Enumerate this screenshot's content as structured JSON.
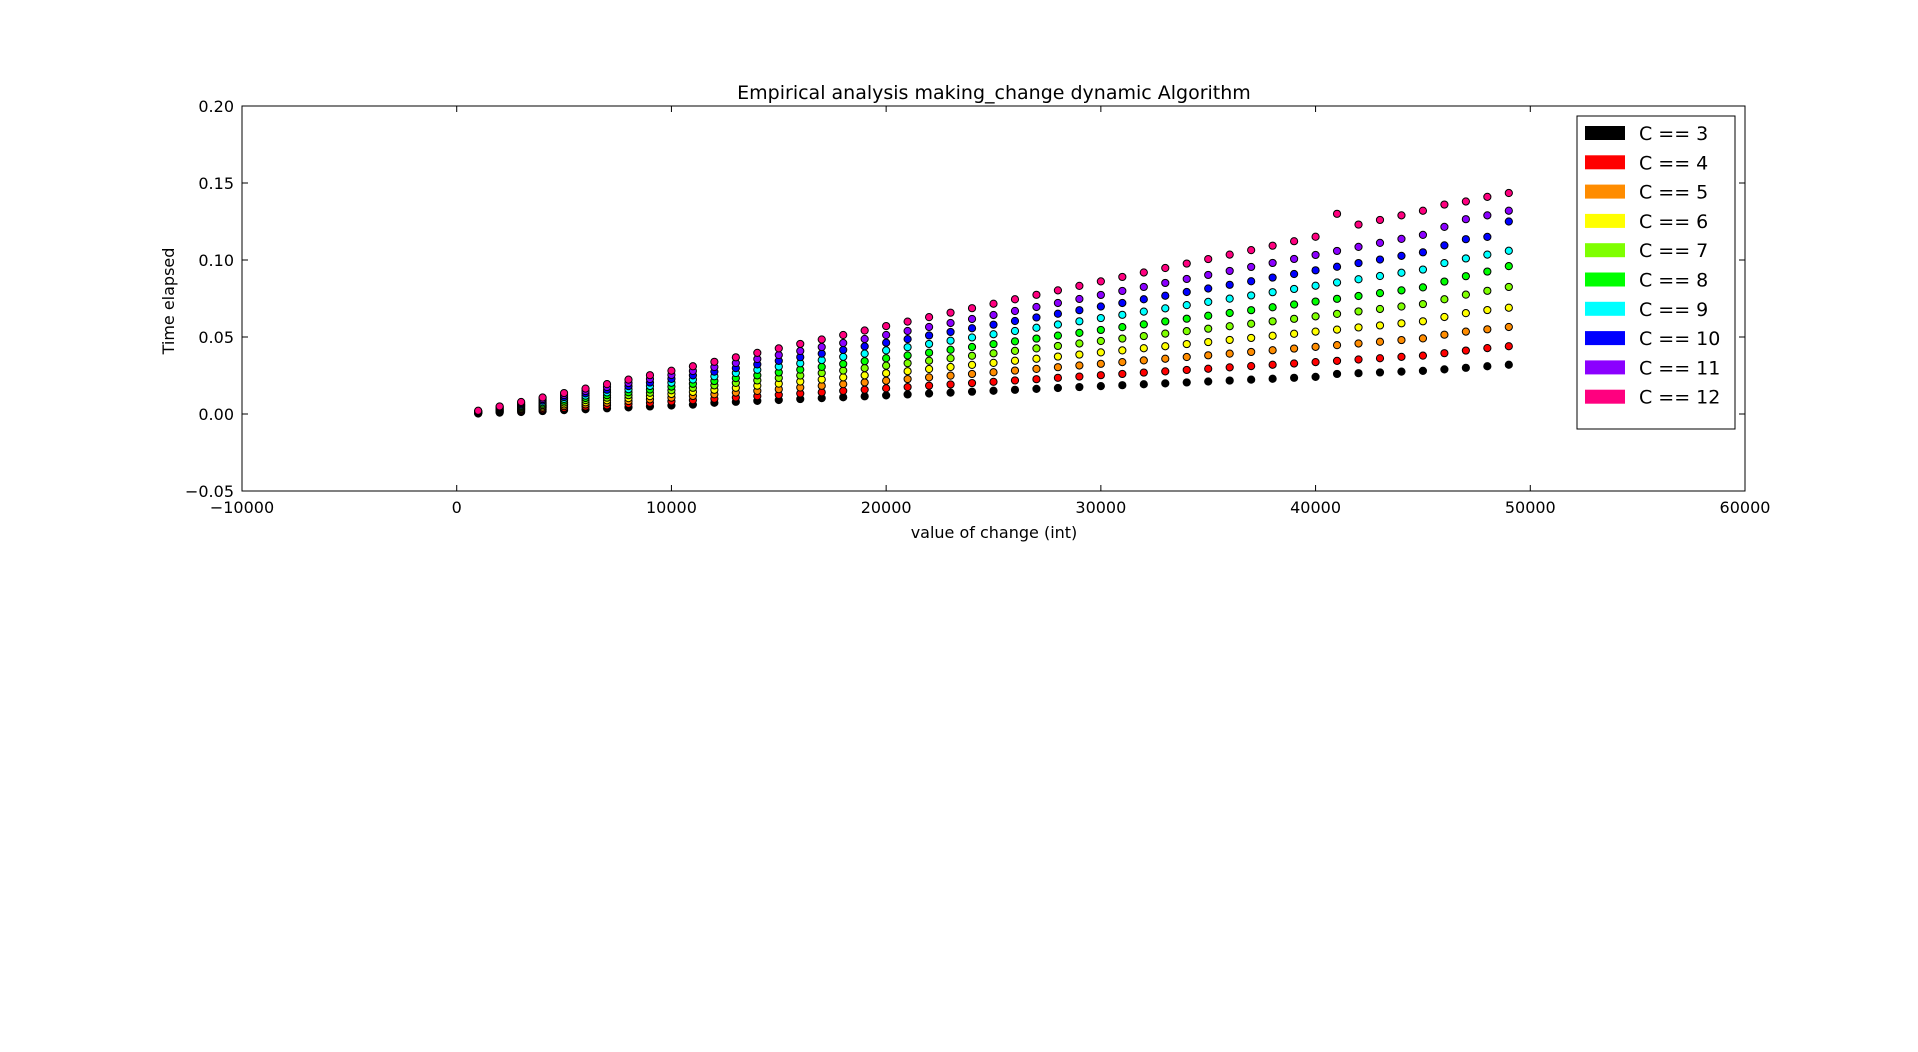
{
  "chart_data": {
    "type": "scatter",
    "title": "Empirical analysis making_change dynamic Algorithm",
    "xlabel": "value of change (int)",
    "ylabel": "Time elapsed",
    "xlim": [
      -10000,
      60000
    ],
    "ylim": [
      -0.05,
      0.2
    ],
    "x_ticks": [
      -10000,
      0,
      10000,
      20000,
      30000,
      40000,
      50000,
      60000
    ],
    "x_tick_labels": [
      "−10000",
      "0",
      "10000",
      "20000",
      "30000",
      "40000",
      "50000",
      "60000"
    ],
    "y_ticks": [
      -0.05,
      0.0,
      0.05,
      0.1,
      0.15,
      0.2
    ],
    "y_tick_labels": [
      "−0.05",
      "0.00",
      "0.05",
      "0.10",
      "0.15",
      "0.20"
    ],
    "legend_position": "top-right",
    "x": [
      1000,
      2000,
      3000,
      4000,
      5000,
      6000,
      7000,
      8000,
      9000,
      10000,
      11000,
      12000,
      13000,
      14000,
      15000,
      16000,
      17000,
      18000,
      19000,
      20000,
      21000,
      22000,
      23000,
      24000,
      25000,
      26000,
      27000,
      28000,
      29000,
      30000,
      31000,
      32000,
      33000,
      34000,
      35000,
      36000,
      37000,
      38000,
      39000,
      40000,
      41000,
      42000,
      43000,
      44000,
      45000,
      46000,
      47000,
      48000,
      49000
    ],
    "series": [
      {
        "name": "C == 3",
        "color": "#000000",
        "values": [
          0.0003,
          0.0009,
          0.0013,
          0.0019,
          0.0025,
          0.0031,
          0.0037,
          0.0043,
          0.0049,
          0.0055,
          0.0061,
          0.0073,
          0.0079,
          0.0085,
          0.0091,
          0.0097,
          0.0103,
          0.0109,
          0.0115,
          0.0121,
          0.0127,
          0.0133,
          0.0139,
          0.0145,
          0.0151,
          0.0157,
          0.0163,
          0.0169,
          0.0175,
          0.0181,
          0.0187,
          0.0193,
          0.0199,
          0.0205,
          0.0211,
          0.0217,
          0.0223,
          0.0229,
          0.0235,
          0.0241,
          0.026,
          0.0265,
          0.027,
          0.0275,
          0.028,
          0.029,
          0.03,
          0.031,
          0.032
        ]
      },
      {
        "name": "C == 4",
        "color": "#ff0000",
        "values": [
          0.0005,
          0.0014,
          0.0022,
          0.0031,
          0.0039,
          0.0048,
          0.0056,
          0.0065,
          0.0073,
          0.0082,
          0.009,
          0.0099,
          0.0107,
          0.0116,
          0.0124,
          0.0133,
          0.0141,
          0.015,
          0.0158,
          0.0167,
          0.0175,
          0.0184,
          0.0192,
          0.0201,
          0.0209,
          0.0218,
          0.0226,
          0.0235,
          0.0243,
          0.0252,
          0.026,
          0.0269,
          0.0277,
          0.0286,
          0.0294,
          0.0303,
          0.0311,
          0.032,
          0.0328,
          0.0337,
          0.0345,
          0.0354,
          0.0362,
          0.0371,
          0.0379,
          0.0395,
          0.0412,
          0.0428,
          0.044
        ]
      },
      {
        "name": "C == 5",
        "color": "#ff8c00",
        "values": [
          0.0007,
          0.0018,
          0.0029,
          0.004,
          0.0051,
          0.0062,
          0.0073,
          0.0084,
          0.0095,
          0.0106,
          0.0117,
          0.0128,
          0.0139,
          0.015,
          0.0161,
          0.0172,
          0.0183,
          0.0194,
          0.0205,
          0.0216,
          0.0227,
          0.0238,
          0.0249,
          0.026,
          0.0271,
          0.0282,
          0.0293,
          0.0304,
          0.0315,
          0.0326,
          0.0337,
          0.0348,
          0.0359,
          0.037,
          0.0381,
          0.0392,
          0.0403,
          0.0414,
          0.0425,
          0.0436,
          0.0447,
          0.0458,
          0.0469,
          0.048,
          0.0491,
          0.0515,
          0.0535,
          0.055,
          0.0565
        ]
      },
      {
        "name": "C == 6",
        "color": "#ffff00",
        "values": [
          0.0009,
          0.0022,
          0.0035,
          0.0049,
          0.0062,
          0.0076,
          0.0089,
          0.0103,
          0.0116,
          0.013,
          0.0143,
          0.0157,
          0.017,
          0.0184,
          0.0197,
          0.0211,
          0.0224,
          0.0238,
          0.0251,
          0.0265,
          0.0278,
          0.0292,
          0.0305,
          0.0319,
          0.0332,
          0.0346,
          0.0359,
          0.0373,
          0.0386,
          0.04,
          0.0413,
          0.0427,
          0.044,
          0.0454,
          0.0467,
          0.0481,
          0.0494,
          0.0508,
          0.0521,
          0.0535,
          0.0548,
          0.0562,
          0.0575,
          0.0589,
          0.0602,
          0.063,
          0.0655,
          0.0675,
          0.069
        ]
      },
      {
        "name": "C == 7",
        "color": "#7fff00",
        "values": [
          0.0011,
          0.0026,
          0.0042,
          0.0058,
          0.0074,
          0.009,
          0.0106,
          0.0122,
          0.0138,
          0.0154,
          0.017,
          0.0186,
          0.0202,
          0.0218,
          0.0234,
          0.025,
          0.0266,
          0.0282,
          0.0298,
          0.0314,
          0.033,
          0.0346,
          0.0362,
          0.0378,
          0.0394,
          0.041,
          0.0426,
          0.0442,
          0.0458,
          0.0474,
          0.049,
          0.0506,
          0.0522,
          0.0538,
          0.0554,
          0.057,
          0.0586,
          0.0602,
          0.0618,
          0.0634,
          0.065,
          0.0666,
          0.0682,
          0.0698,
          0.0714,
          0.0745,
          0.0775,
          0.08,
          0.0825
        ]
      },
      {
        "name": "C == 8",
        "color": "#00ff00",
        "values": [
          0.0013,
          0.0031,
          0.0049,
          0.0067,
          0.0086,
          0.0104,
          0.0122,
          0.0141,
          0.0159,
          0.0178,
          0.0196,
          0.0214,
          0.0233,
          0.0251,
          0.027,
          0.0288,
          0.0306,
          0.0325,
          0.0343,
          0.0362,
          0.038,
          0.0398,
          0.0417,
          0.0435,
          0.0454,
          0.0472,
          0.049,
          0.0509,
          0.0527,
          0.0546,
          0.0564,
          0.0582,
          0.0601,
          0.0619,
          0.0638,
          0.0656,
          0.0674,
          0.0693,
          0.0711,
          0.073,
          0.0748,
          0.0766,
          0.0785,
          0.0803,
          0.0822,
          0.086,
          0.0895,
          0.0925,
          0.096
        ]
      },
      {
        "name": "C == 9",
        "color": "#00ffff",
        "values": [
          0.0015,
          0.0035,
          0.0056,
          0.0077,
          0.0098,
          0.0119,
          0.014,
          0.0161,
          0.0182,
          0.0203,
          0.0224,
          0.0245,
          0.0266,
          0.0287,
          0.0308,
          0.0329,
          0.035,
          0.0371,
          0.0392,
          0.0413,
          0.0434,
          0.0455,
          0.0476,
          0.0497,
          0.0518,
          0.0539,
          0.056,
          0.0581,
          0.0602,
          0.0623,
          0.0644,
          0.0665,
          0.0686,
          0.0707,
          0.0728,
          0.0749,
          0.077,
          0.0791,
          0.0812,
          0.0833,
          0.0854,
          0.0875,
          0.0896,
          0.0917,
          0.0938,
          0.098,
          0.101,
          0.1035,
          0.106
        ]
      },
      {
        "name": "C == 10",
        "color": "#0000ff",
        "values": [
          0.0017,
          0.004,
          0.0063,
          0.0087,
          0.011,
          0.0134,
          0.0157,
          0.0181,
          0.0204,
          0.0228,
          0.0251,
          0.0275,
          0.0298,
          0.0322,
          0.0345,
          0.0369,
          0.0392,
          0.0416,
          0.0439,
          0.0463,
          0.0486,
          0.051,
          0.0533,
          0.0557,
          0.058,
          0.0604,
          0.0627,
          0.0651,
          0.0674,
          0.0698,
          0.0721,
          0.0745,
          0.0768,
          0.0792,
          0.0815,
          0.0839,
          0.0862,
          0.0886,
          0.0909,
          0.0933,
          0.0956,
          0.098,
          0.1003,
          0.1027,
          0.105,
          0.1095,
          0.1135,
          0.115,
          0.125
        ]
      },
      {
        "name": "C == 11",
        "color": "#8b00ff",
        "values": [
          0.0019,
          0.0045,
          0.0071,
          0.0097,
          0.0123,
          0.0149,
          0.0175,
          0.0201,
          0.0227,
          0.0253,
          0.0279,
          0.0305,
          0.0331,
          0.0357,
          0.0383,
          0.0409,
          0.0435,
          0.0461,
          0.0487,
          0.0513,
          0.0539,
          0.0565,
          0.0591,
          0.0617,
          0.0643,
          0.0669,
          0.0695,
          0.0721,
          0.0747,
          0.0773,
          0.0799,
          0.0825,
          0.0851,
          0.0877,
          0.0903,
          0.0929,
          0.0955,
          0.0981,
          0.1007,
          0.1033,
          0.1059,
          0.1085,
          0.1111,
          0.1137,
          0.1163,
          0.1215,
          0.1265,
          0.129,
          0.132
        ]
      },
      {
        "name": "C == 12",
        "color": "#ff007f",
        "values": [
          0.0021,
          0.0049,
          0.0078,
          0.0107,
          0.0136,
          0.0165,
          0.0194,
          0.0223,
          0.0252,
          0.0281,
          0.031,
          0.0339,
          0.0368,
          0.0397,
          0.0426,
          0.0455,
          0.0484,
          0.0513,
          0.0542,
          0.0571,
          0.06,
          0.0629,
          0.0658,
          0.0687,
          0.0716,
          0.0745,
          0.0774,
          0.0803,
          0.0832,
          0.0861,
          0.089,
          0.0919,
          0.0948,
          0.0977,
          0.1006,
          0.1035,
          0.1064,
          0.1093,
          0.1122,
          0.1151,
          0.13,
          0.123,
          0.126,
          0.129,
          0.132,
          0.136,
          0.138,
          0.141,
          0.1435
        ]
      }
    ]
  }
}
